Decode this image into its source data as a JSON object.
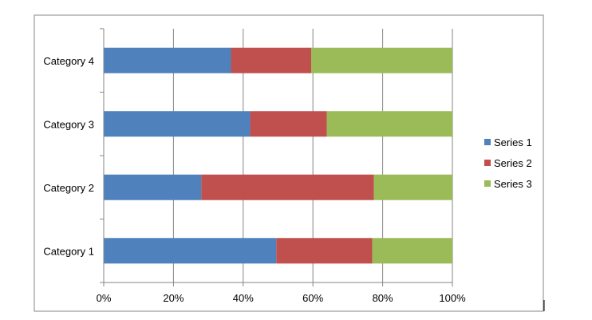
{
  "chart_data": {
    "type": "bar",
    "orientation": "horizontal",
    "stacking": "percent",
    "categories": [
      "Category 1",
      "Category 2",
      "Category 3",
      "Category 4"
    ],
    "series": [
      {
        "name": "Series 1",
        "color": "#4F81BD",
        "values": [
          49.5,
          28.0,
          42.0,
          36.5
        ]
      },
      {
        "name": "Series 2",
        "color": "#C0504D",
        "values": [
          27.5,
          49.5,
          22.0,
          23.0
        ]
      },
      {
        "name": "Series 3",
        "color": "#9BBB59",
        "values": [
          23.0,
          22.5,
          36.0,
          40.5
        ]
      }
    ],
    "x_ticks": [
      "0%",
      "20%",
      "40%",
      "60%",
      "80%",
      "100%"
    ],
    "xlim": [
      0,
      100
    ],
    "grid": "vertical",
    "legend": "right",
    "title": "",
    "xlabel": "",
    "ylabel": ""
  }
}
